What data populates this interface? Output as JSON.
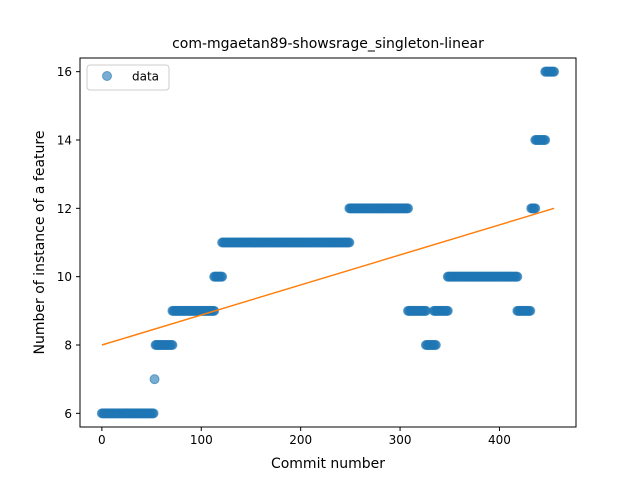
{
  "chart_data": {
    "type": "scatter",
    "title": "com-mgaetan89-showsrage_singleton-linear",
    "xlabel": "Commit number",
    "ylabel": "Number of instance of a feature",
    "xlim": [
      -22,
      477
    ],
    "ylim": [
      5.6,
      16.4
    ],
    "xticks": [
      0,
      100,
      200,
      300,
      400
    ],
    "yticks": [
      6,
      8,
      10,
      12,
      14,
      16
    ],
    "grid": false,
    "legend": {
      "placement": "top-left",
      "entries": [
        "data"
      ]
    },
    "colors": {
      "points": "#1f77b4",
      "fit": "#ff7f0e"
    },
    "series": [
      {
        "name": "data",
        "segments": [
          {
            "x_start": 0,
            "x_end": 52,
            "y": 6
          },
          {
            "x_start": 53,
            "x_end": 53,
            "y": 7
          },
          {
            "x_start": 54,
            "x_end": 71,
            "y": 8
          },
          {
            "x_start": 71,
            "x_end": 113,
            "y": 9
          },
          {
            "x_start": 113,
            "x_end": 121,
            "y": 10
          },
          {
            "x_start": 121,
            "x_end": 249,
            "y": 11
          },
          {
            "x_start": 249,
            "x_end": 308,
            "y": 12
          },
          {
            "x_start": 308,
            "x_end": 326,
            "y": 9
          },
          {
            "x_start": 326,
            "x_end": 336,
            "y": 8
          },
          {
            "x_start": 334,
            "x_end": 348,
            "y": 9
          },
          {
            "x_start": 348,
            "x_end": 418,
            "y": 10
          },
          {
            "x_start": 418,
            "x_end": 431,
            "y": 9
          },
          {
            "x_start": 432,
            "x_end": 436,
            "y": 12
          },
          {
            "x_start": 436,
            "x_end": 446,
            "y": 14
          },
          {
            "x_start": 446,
            "x_end": 455,
            "y": 16
          }
        ]
      }
    ],
    "fit_line": {
      "x": [
        0,
        455
      ],
      "y": [
        8.0,
        12.0
      ]
    }
  }
}
